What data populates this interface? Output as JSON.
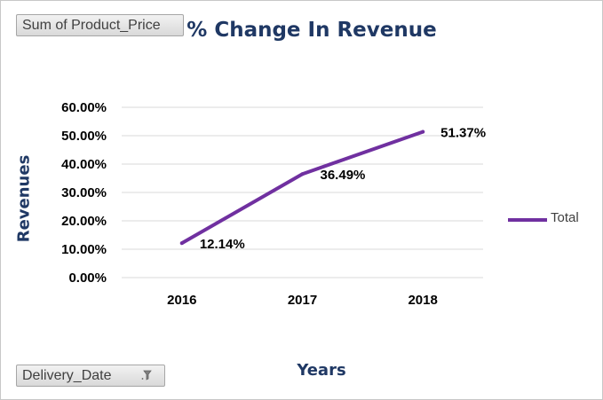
{
  "value_field": {
    "label": "Sum of Product_Price"
  },
  "axis_field": {
    "label": "Delivery_Date",
    "icon": "filter-icon"
  },
  "chart_data": {
    "type": "line",
    "title": "% Change In Revenue",
    "xlabel": "Years",
    "ylabel": "Revenues",
    "categories": [
      "2016",
      "2017",
      "2018"
    ],
    "series": [
      {
        "name": "Total",
        "values": [
          12.14,
          36.49,
          51.37
        ],
        "labels": [
          "12.14%",
          "36.49%",
          "51.37%"
        ],
        "color": "#7030a0"
      }
    ],
    "y_ticks": [
      "0.00%",
      "10.00%",
      "20.00%",
      "30.00%",
      "40.00%",
      "50.00%",
      "60.00%"
    ],
    "ylim": [
      0,
      60
    ],
    "grid": true,
    "legend": "right"
  }
}
